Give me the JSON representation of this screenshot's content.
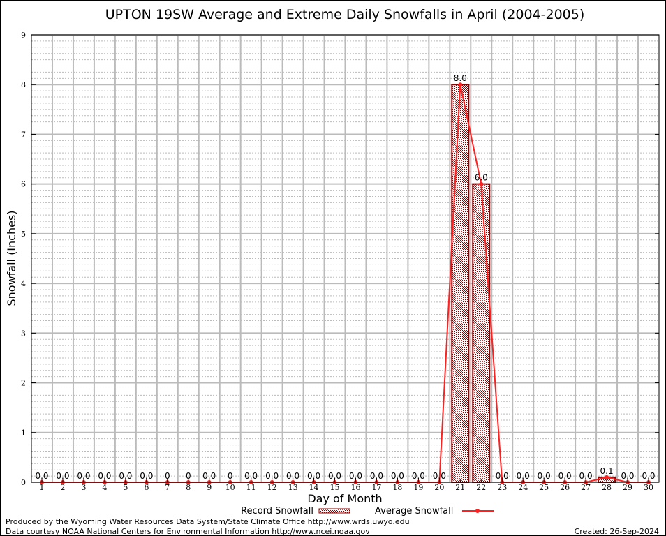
{
  "chart_data": {
    "type": "bar",
    "title": "UPTON 19SW Average and Extreme Daily Snowfalls in April (2004-2005)",
    "xlabel": "Day of Month",
    "ylabel": "Snowfall (Inches)",
    "ylim": [
      0,
      9
    ],
    "yticks": [
      "0",
      "1",
      "2",
      "3",
      "4",
      "5",
      "6",
      "7",
      "8",
      "9"
    ],
    "categories": [
      "1",
      "2",
      "3",
      "4",
      "5",
      "6",
      "7",
      "8",
      "9",
      "10",
      "11",
      "12",
      "13",
      "14",
      "15",
      "16",
      "17",
      "18",
      "19",
      "20",
      "21",
      "22",
      "23",
      "24",
      "25",
      "26",
      "27",
      "28",
      "29",
      "30"
    ],
    "series": [
      {
        "name": "Record Snowfall",
        "kind": "bar",
        "color": "#8b0000",
        "values": [
          0,
          0,
          0,
          0,
          0,
          0,
          0,
          0,
          0,
          0,
          0,
          0,
          0,
          0,
          0,
          0,
          0,
          0,
          0,
          0,
          8.0,
          6.0,
          0,
          0,
          0,
          0,
          0,
          0.1,
          0,
          0
        ]
      },
      {
        "name": "Average Snowfall",
        "kind": "line",
        "color": "#ff2020",
        "values": [
          0,
          0,
          0,
          0,
          0,
          0,
          0,
          0,
          0,
          0,
          0,
          0,
          0,
          0,
          0,
          0,
          0,
          0,
          0,
          0,
          8.0,
          6.0,
          0,
          0,
          0,
          0,
          0,
          0.1,
          0,
          0
        ]
      }
    ],
    "data_labels": [
      "0.0",
      "0.0",
      "0.0",
      "0.0",
      "0.0",
      "0.0",
      "0",
      "0",
      "0.0",
      "0",
      "0.0",
      "0.0",
      "0.0",
      "0.0",
      "0.0",
      "0.0",
      "0.0",
      "0.0",
      "0.0",
      "0.0",
      "8.0",
      "6.0",
      "0.0",
      "0.0",
      "0.0",
      "0.0",
      "0.0",
      "0.1",
      "0.0",
      "0.0"
    ],
    "legend": [
      "Record Snowfall",
      "Average Snowfall"
    ],
    "legend_position": "bottom",
    "grid": true
  },
  "footer": {
    "produced_by": "Produced by the Wyoming Water Resources Data System/State Climate Office http://www.wrds.uwyo.edu",
    "courtesy": "Data courtesy NOAA National Centers for Environmental Information http://www.ncei.noaa.gov",
    "created": "Created: 26-Sep-2024"
  }
}
